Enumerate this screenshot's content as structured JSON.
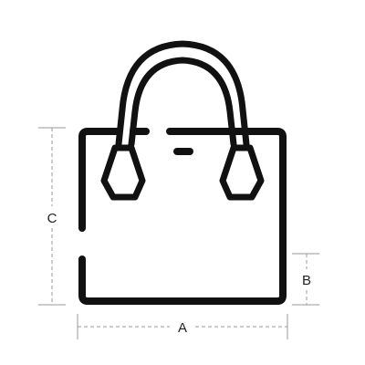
{
  "diagram": {
    "subject": "handbag-outline",
    "stroke_color": "#111111",
    "dimension_color": "#9a9a9a",
    "label_color": "#222222",
    "labels": {
      "width": "A",
      "strap_drop": "B",
      "height": "C"
    }
  }
}
